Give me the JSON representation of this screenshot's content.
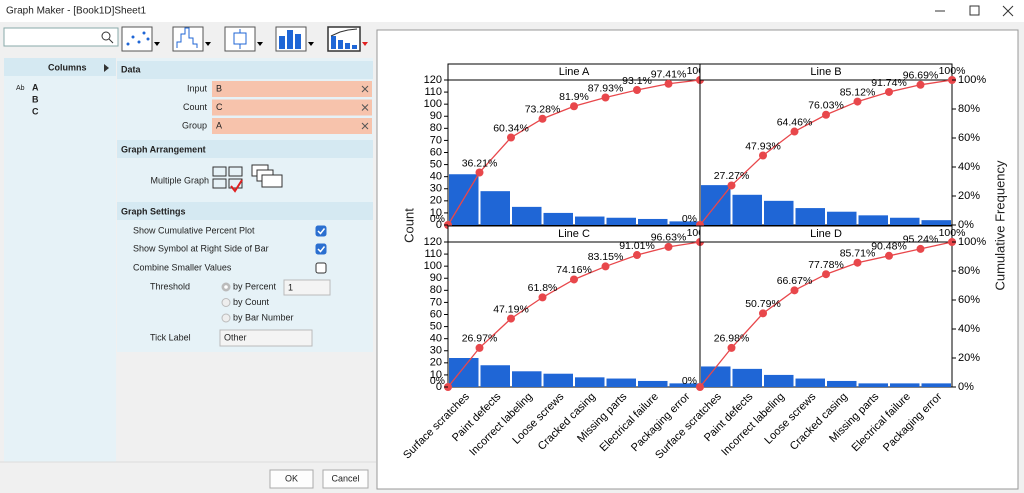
{
  "window": {
    "title": "Graph Maker - [Book1D]Sheet1"
  },
  "sidebar": {
    "columns_header": "Columns",
    "columns": [
      {
        "type": "Ab",
        "name": "A"
      },
      {
        "name": "B"
      },
      {
        "name": "C"
      }
    ]
  },
  "data_section": {
    "title": "Data",
    "fields": [
      {
        "label": "Input",
        "value": "B"
      },
      {
        "label": "Count",
        "value": "C"
      },
      {
        "label": "Group",
        "value": "A"
      }
    ]
  },
  "arrangement": {
    "title": "Graph Arrangement",
    "label": "Multiple Graph"
  },
  "settings": {
    "title": "Graph Settings",
    "options": [
      {
        "label": "Show Cumulative Percent Plot",
        "checked": true
      },
      {
        "label": "Show Symbol at Right Side of Bar",
        "checked": true
      },
      {
        "label": "Combine Smaller Values",
        "checked": false
      }
    ],
    "threshold": {
      "label": "Threshold",
      "options": [
        "by Percent",
        "by Count",
        "by Bar Number"
      ],
      "selected": 0,
      "value": 1
    },
    "tick_label": {
      "label": "Tick Label",
      "value": "Other"
    }
  },
  "buttons": [
    "OK",
    "Cancel"
  ],
  "chart_data": {
    "type": "pareto",
    "ylabel": "Count",
    "y2label": "Cumulative Frequency",
    "categories": [
      "Surface scratches",
      "Paint defects",
      "Incorrect labeling",
      "Loose screws",
      "Cracked casing",
      "Missing parts",
      "Electrical failure",
      "Packaging error"
    ],
    "ylim": [
      0,
      120
    ],
    "yticks": [
      0,
      10,
      20,
      30,
      40,
      50,
      60,
      70,
      80,
      90,
      100,
      110,
      120
    ],
    "y2lim": [
      0,
      100
    ],
    "y2ticks": [
      {
        "value": 0,
        "label": "0%"
      },
      {
        "value": 20,
        "label": "20%"
      },
      {
        "value": 40,
        "label": "40%"
      },
      {
        "value": 60,
        "label": "60%"
      },
      {
        "value": 80,
        "label": "80%"
      },
      {
        "value": 100,
        "label": "100%"
      }
    ],
    "bar_color": "#1f66d6",
    "line_color": "#e8474b",
    "panels": [
      {
        "title": "Line A",
        "values": [
          42,
          28,
          15,
          10,
          7,
          6,
          5,
          3
        ],
        "cumulative": [
          0,
          36.21,
          60.34,
          73.28,
          81.9,
          87.93,
          93.1,
          97.41,
          100
        ],
        "cumulative_labels": [
          "0%",
          "36.21%",
          "60.34%",
          "73.28%",
          "81.9%",
          "87.93%",
          "93.1%",
          "97.41%",
          "100%"
        ]
      },
      {
        "title": "Line B",
        "values": [
          33,
          25,
          20,
          14,
          11,
          8,
          6,
          4
        ],
        "cumulative": [
          0,
          27.27,
          47.93,
          64.46,
          76.03,
          85.12,
          91.74,
          96.69,
          100
        ],
        "cumulative_labels": [
          "0%",
          "27.27%",
          "47.93%",
          "64.46%",
          "76.03%",
          "85.12%",
          "91.74%",
          "96.69%",
          "100%"
        ]
      },
      {
        "title": "Line C",
        "values": [
          24,
          18,
          13,
          11,
          8,
          7,
          5,
          3
        ],
        "cumulative": [
          0,
          26.97,
          47.19,
          61.8,
          74.16,
          83.15,
          91.01,
          96.63,
          100
        ],
        "cumulative_labels": [
          "0%",
          "26.97%",
          "47.19%",
          "61.8%",
          "74.16%",
          "83.15%",
          "91.01%",
          "96.63%",
          "100%"
        ]
      },
      {
        "title": "Line D",
        "values": [
          17,
          15,
          10,
          7,
          5,
          3,
          3,
          3
        ],
        "cumulative": [
          0,
          26.98,
          50.79,
          66.67,
          77.78,
          85.71,
          90.48,
          95.24,
          100
        ],
        "cumulative_labels": [
          "0%",
          "26.98%",
          "50.79%",
          "66.67%",
          "77.78%",
          "85.71%",
          "90.48%",
          "95.24%",
          "100%"
        ]
      }
    ]
  }
}
